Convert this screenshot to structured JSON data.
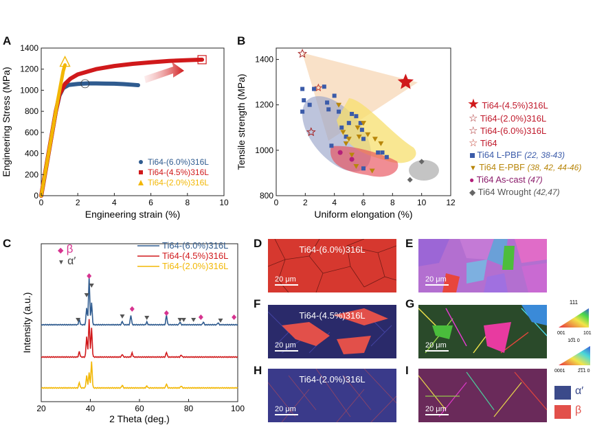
{
  "panels": {
    "a": "A",
    "b": "B",
    "c": "C",
    "d": "D",
    "e": "E",
    "f": "F",
    "g": "G",
    "h": "H",
    "i": "I"
  },
  "chart_data": [
    {
      "type": "line",
      "panel": "A",
      "xlabel": "Engineering strain (%)",
      "ylabel": "Engineering Stress (MPa)",
      "xlim": [
        0,
        10
      ],
      "ylim": [
        0,
        1400
      ],
      "xticks": [
        "0",
        "2",
        "4",
        "6",
        "8",
        "10"
      ],
      "yticks": [
        "0",
        "200",
        "400",
        "600",
        "800",
        "1000",
        "1200",
        "1400"
      ],
      "series": [
        {
          "name": "Ti64-(6.0%)316L",
          "color": "#2f5b8f",
          "x": [
            0,
            0.3,
            0.6,
            0.8,
            1.0,
            1.2,
            1.5,
            2.0,
            2.5,
            3.0,
            3.5,
            4.0,
            4.5,
            5.0,
            5.3
          ],
          "y": [
            0,
            300,
            600,
            800,
            950,
            1020,
            1050,
            1060,
            1065,
            1065,
            1063,
            1062,
            1058,
            1052,
            1048
          ]
        },
        {
          "name": "Ti64-(4.5%)316L",
          "color": "#d0191b",
          "x": [
            0,
            0.3,
            0.6,
            0.8,
            1.0,
            1.3,
            1.6,
            2.0,
            3.0,
            4.0,
            5.0,
            6.0,
            7.0,
            8.0,
            8.8
          ],
          "y": [
            0,
            300,
            600,
            800,
            960,
            1060,
            1110,
            1150,
            1200,
            1230,
            1250,
            1265,
            1278,
            1285,
            1290
          ]
        },
        {
          "name": "Ti64-(2.0%)316L",
          "color": "#f2b705",
          "x": [
            0,
            0.3,
            0.6,
            0.9,
            1.2,
            1.3
          ],
          "y": [
            0,
            300,
            600,
            900,
            1180,
            1240
          ]
        }
      ]
    },
    {
      "type": "scatter",
      "panel": "B",
      "xlabel": "Uniform elongation (%)",
      "ylabel": "Tensile strength (MPa)",
      "xlim": [
        0,
        12
      ],
      "ylim": [
        800,
        1450
      ],
      "xticks": [
        "0",
        "2",
        "4",
        "6",
        "8",
        "10",
        "12"
      ],
      "yticks": [
        "800",
        "1000",
        "1200",
        "1400"
      ],
      "series": [
        {
          "name": "Ti64-(4.5%)316L",
          "marker": "star-filled",
          "color": "#d0191b",
          "points": [
            [
              8.9,
              1300
            ]
          ]
        },
        {
          "name": "Ti64-(2.0%)316L",
          "marker": "star-dark",
          "color": "#a52020",
          "points": [
            [
              1.8,
              1425
            ]
          ]
        },
        {
          "name": "Ti64-(6.0%)316L",
          "marker": "star-dark",
          "color": "#a52020",
          "points": [
            [
              2.4,
              1080
            ]
          ]
        },
        {
          "name": "Ti64",
          "marker": "star-open",
          "color": "#c0392b",
          "points": [
            [
              2.9,
              1275
            ]
          ]
        },
        {
          "name": "Ti64 L-PBF",
          "ref": "(22, 38-43)",
          "marker": "square",
          "color": "#3b5ba9",
          "points": [
            [
              1.8,
              1270
            ],
            [
              1.9,
              1220
            ],
            [
              1.8,
              1170
            ],
            [
              2.3,
              1200
            ],
            [
              2.6,
              1270
            ],
            [
              3.3,
              1280
            ],
            [
              3.5,
              1210
            ],
            [
              3.6,
              1180
            ],
            [
              4.0,
              1240
            ],
            [
              4.3,
              1170
            ],
            [
              4.5,
              1100
            ],
            [
              4.8,
              1060
            ],
            [
              5.0,
              1120
            ],
            [
              5.2,
              1160
            ],
            [
              5.5,
              1150
            ],
            [
              5.8,
              1120
            ],
            [
              5.9,
              1090
            ],
            [
              6.0,
              1050
            ],
            [
              7.0,
              990
            ],
            [
              7.3,
              990
            ],
            [
              7.6,
              970
            ],
            [
              3.8,
              1020
            ],
            [
              6.0,
              920
            ]
          ]
        },
        {
          "name": "Ti64 E-PBF",
          "ref": "(38, 42, 44-46)",
          "marker": "triangle",
          "color": "#b8860b",
          "points": [
            [
              4.3,
              1200
            ],
            [
              4.6,
              1080
            ],
            [
              4.8,
              1030
            ],
            [
              5.0,
              1050
            ],
            [
              5.2,
              980
            ],
            [
              5.6,
              1100
            ],
            [
              5.7,
              1060
            ],
            [
              6.0,
              1120
            ],
            [
              6.3,
              1070
            ],
            [
              6.8,
              1050
            ],
            [
              7.2,
              1030
            ],
            [
              5.5,
              930
            ],
            [
              6.6,
              910
            ]
          ]
        },
        {
          "name": "Ti64 As-cast",
          "ref": "(47)",
          "marker": "circle",
          "color": "#b3207a",
          "points": [
            [
              4.4,
              990
            ],
            [
              5.2,
              960
            ]
          ]
        },
        {
          "name": "Ti64 Wrought",
          "ref": "(42,47)",
          "marker": "diamond",
          "color": "#666666",
          "points": [
            [
              10.0,
              950
            ],
            [
              9.2,
              870
            ]
          ]
        }
      ]
    },
    {
      "type": "line",
      "panel": "C",
      "xlabel": "2 Theta (deg.)",
      "ylabel": "Intensity (a.u.)",
      "xlim": [
        20,
        100
      ],
      "xticks": [
        "20",
        "40",
        "60",
        "80",
        "100"
      ],
      "markers_legend": [
        {
          "symbol": "◆",
          "label": "β",
          "color": "#d6338f"
        },
        {
          "symbol": "▼",
          "label": "α′",
          "color": "#555555"
        }
      ],
      "series": [
        {
          "name": "Ti64-(6.0%)316L",
          "color": "#2f5b8f"
        },
        {
          "name": "Ti64-(4.5%)316L",
          "color": "#d0191b"
        },
        {
          "name": "Ti64-(2.0%)316L",
          "color": "#f2b705"
        }
      ]
    }
  ],
  "micrographs": {
    "d": {
      "label": "Ti64-(6.0%)316L",
      "scale": "20 μm"
    },
    "e": {
      "scale": "20 μm"
    },
    "f": {
      "label": "Ti64-(4.5%)316L",
      "scale": "20 μm"
    },
    "g": {
      "scale": "20 μm"
    },
    "h": {
      "label": "Ti64-(2.0%)316L",
      "scale": "20 μm"
    },
    "i": {
      "scale": "20 μm"
    }
  },
  "ipf": {
    "top": {
      "apex": "111",
      "left": "001",
      "right": "101"
    },
    "bottom": {
      "apex": "10̅1 0",
      "left": "0001",
      "right": "2̅1̅1 0"
    }
  },
  "phase_legend": [
    {
      "label": "α′",
      "color": "#3b4a8a"
    },
    {
      "label": "β",
      "color": "#e2504a"
    }
  ]
}
